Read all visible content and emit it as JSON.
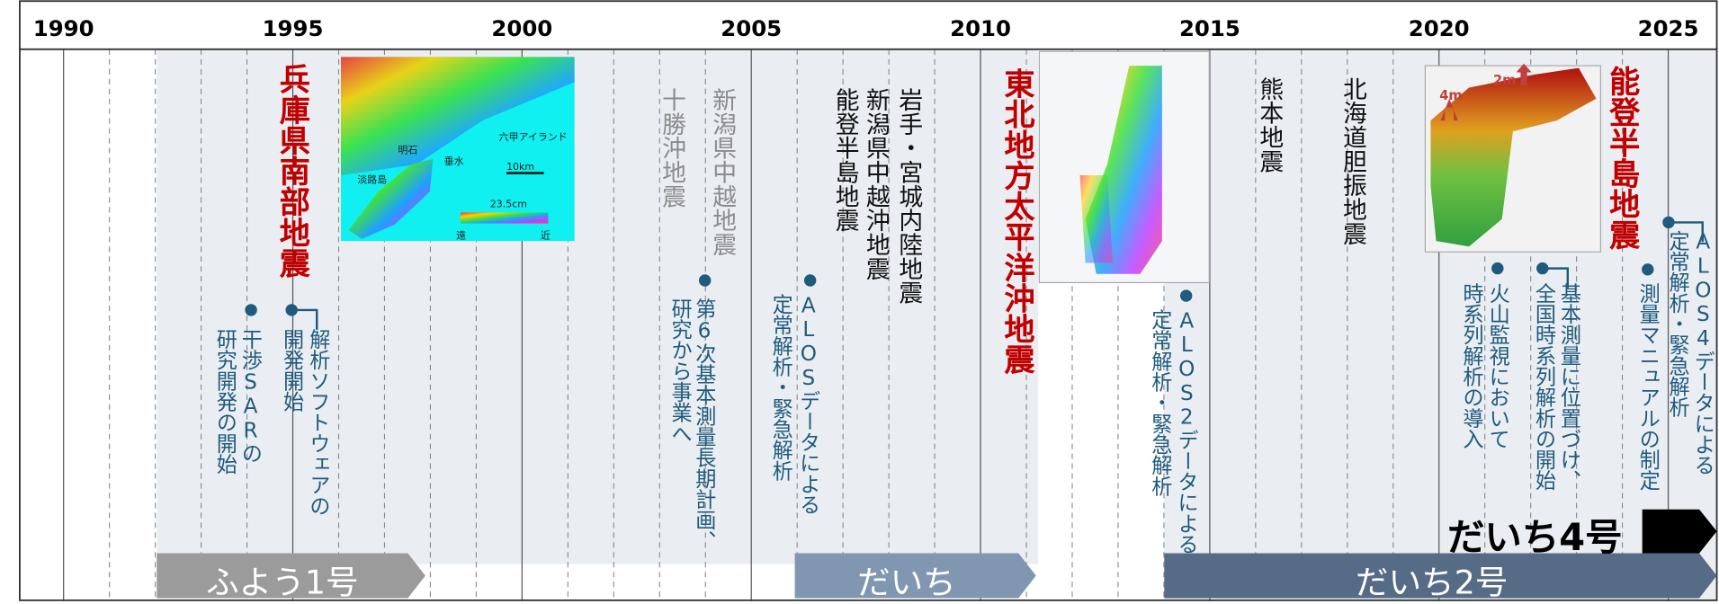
{
  "timeline": {
    "years": [
      "1990",
      "1995",
      "2000",
      "2005",
      "2010",
      "2015",
      "2020",
      "2025"
    ]
  },
  "events": [
    {
      "label": "兵庫県南部地震",
      "color": "#c00000"
    },
    {
      "label": "十勝沖地震",
      "color": "#8c8c8c"
    },
    {
      "label": "新潟県中越地震",
      "color": "#8c8c8c"
    },
    {
      "label": "能登半島地震",
      "color": "#111111"
    },
    {
      "label": "新潟県中越沖地震",
      "color": "#111111"
    },
    {
      "label": "岩手・宮城内陸地震",
      "color": "#111111"
    },
    {
      "label": "東北地方太平洋沖地震",
      "color": "#c00000"
    },
    {
      "label": "熊本地震",
      "color": "#111111"
    },
    {
      "label": "北海道胆振地震",
      "color": "#111111"
    },
    {
      "label": "能登半島地震",
      "color": "#c00000"
    }
  ],
  "annotations": [
    {
      "lines": [
        "干渉SARの",
        "研究開発の開始"
      ]
    },
    {
      "lines": [
        "解析ソフトウェアの",
        "開発開始"
      ]
    },
    {
      "lines": [
        "第6次基本測量長期計画、",
        "研究から事業へ"
      ]
    },
    {
      "lines": [
        "ALOSデータによる",
        "定常解析・緊急解析"
      ]
    },
    {
      "lines": [
        "ALOS2データによる",
        "定常解析・緊急解析"
      ]
    },
    {
      "lines": [
        "火山監視において",
        "時系列解析の導入"
      ]
    },
    {
      "lines": [
        "基本測量に位置づけ、",
        "全国時系列解析の開始"
      ]
    },
    {
      "lines": [
        "測量マニュアルの制定"
      ]
    },
    {
      "lines": [
        "ALOS4データによる",
        "定常解析・緊急解析"
      ]
    }
  ],
  "satellites": [
    {
      "name": "ふよう1号",
      "color": "#9b9b9b"
    },
    {
      "name": "だいち",
      "color": "#8197b1"
    },
    {
      "name": "だいち2号",
      "color": "#566b86"
    },
    {
      "name": "だいち4号",
      "color": "#000000"
    }
  ],
  "image_labels": [
    "六甲アイランド",
    "明石",
    "垂水",
    "淡路島",
    "10km",
    "23.5cm",
    "遠",
    "近",
    "4m",
    "2m"
  ],
  "annotation_color": "#1f5b7e"
}
